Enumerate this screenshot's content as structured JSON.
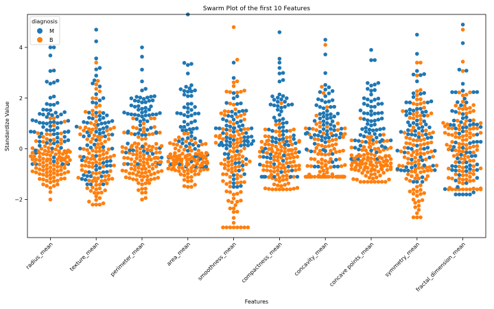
{
  "chart_data": {
    "type": "scatter",
    "subtype": "swarm",
    "title": "Swarm Plot of the first 10 Features",
    "xlabel": "Features",
    "ylabel": "Standardize Value",
    "categories": [
      "radius_mean",
      "texture_mean",
      "perimeter_mean",
      "area_mean",
      "smoothness_mean",
      "compactness_mean",
      "concavity_mean",
      "concave points_mean",
      "symmetry_mean",
      "fractal_dimension_mean"
    ],
    "ylim": [
      -3.5,
      5.3
    ],
    "yticks": [
      {
        "value": -2,
        "label": "−2"
      },
      {
        "value": 0,
        "label": "0"
      },
      {
        "value": 2,
        "label": "2"
      },
      {
        "value": 4,
        "label": "4"
      }
    ],
    "legend": {
      "title": "diagnosis",
      "position": "top-left",
      "entries": [
        {
          "name": "M",
          "color": "#1f77b4"
        },
        {
          "name": "B",
          "color": "#ff7f0e"
        }
      ]
    },
    "series": [
      {
        "name": "M",
        "color": "#1f77b4",
        "summary": [
          {
            "category": "radius_mean",
            "min": -0.6,
            "max": 4.0,
            "center": 1.0
          },
          {
            "category": "texture_mean",
            "min": -1.4,
            "max": 4.7,
            "center": 0.6
          },
          {
            "category": "perimeter_mean",
            "min": -0.6,
            "max": 4.0,
            "center": 1.0
          },
          {
            "category": "area_mean",
            "min": -0.7,
            "max": 5.3,
            "center": 1.0
          },
          {
            "category": "smoothness_mean",
            "min": -1.5,
            "max": 3.4,
            "center": 0.6
          },
          {
            "category": "compactness_mean",
            "min": -1.1,
            "max": 4.6,
            "center": 0.8
          },
          {
            "category": "concavity_mean",
            "min": -0.7,
            "max": 4.3,
            "center": 1.0
          },
          {
            "category": "concave points_mean",
            "min": -0.4,
            "max": 3.9,
            "center": 1.0
          },
          {
            "category": "symmetry_mean",
            "min": -1.3,
            "max": 4.5,
            "center": 0.6
          },
          {
            "category": "fractal_dimension_mean",
            "min": -1.8,
            "max": 4.9,
            "center": 0.3
          }
        ]
      },
      {
        "name": "B",
        "color": "#ff7f0e",
        "summary": [
          {
            "category": "radius_mean",
            "min": -2.0,
            "max": 1.2,
            "center": -0.5
          },
          {
            "category": "texture_mean",
            "min": -2.2,
            "max": 3.4,
            "center": -0.3
          },
          {
            "category": "perimeter_mean",
            "min": -2.0,
            "max": 1.2,
            "center": -0.5
          },
          {
            "category": "area_mean",
            "min": -1.5,
            "max": 0.6,
            "center": -0.5
          },
          {
            "category": "smoothness_mean",
            "min": -3.1,
            "max": 4.8,
            "center": -0.4
          },
          {
            "category": "compactness_mean",
            "min": -1.6,
            "max": 1.8,
            "center": -0.5
          },
          {
            "category": "concavity_mean",
            "min": -1.1,
            "max": 4.1,
            "center": -0.5
          },
          {
            "category": "concave points_mean",
            "min": -1.3,
            "max": 1.2,
            "center": -0.5
          },
          {
            "category": "symmetry_mean",
            "min": -2.7,
            "max": 3.4,
            "center": -0.4
          },
          {
            "category": "fractal_dimension_mean",
            "min": -1.6,
            "max": 4.7,
            "center": 0.0
          }
        ]
      }
    ]
  }
}
